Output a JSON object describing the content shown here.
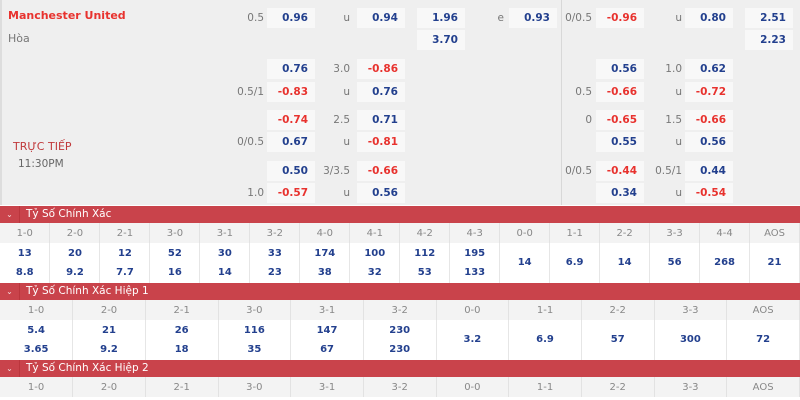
{
  "match": {
    "home": "Manchester United",
    "draw": "Hòa",
    "status": "TRỰC TIẾP",
    "time": "11:30PM"
  },
  "colors": {
    "accent": "#c9434b",
    "positive": "#23408e",
    "negative": "#e8322e"
  },
  "odds_rows": [
    {
      "hl": "0.5",
      "h": "0.96",
      "ol": "u",
      "o": "0.94",
      "x": "1.96",
      "el": "e",
      "e": "0.93",
      "hl2": "0/0.5",
      "h2": "-0.96",
      "ol2": "u",
      "o2": "0.80",
      "x2": "2.51"
    },
    {
      "x": "3.70",
      "x2": "2.23"
    },
    {
      "h": "0.76",
      "ol": "3.0",
      "o": "-0.86",
      "h2": "0.56",
      "ol2": "1.0",
      "o2": "0.62"
    },
    {
      "hl": "0.5/1",
      "h": "-0.83",
      "ol": "u",
      "o": "0.76",
      "hl2": "0.5",
      "h2": "-0.66",
      "ol2": "u",
      "o2": "-0.72"
    },
    {
      "h": "-0.74",
      "ol": "2.5",
      "o": "0.71",
      "hl2": "0",
      "h2": "-0.65",
      "ol2": "1.5",
      "o2": "-0.66"
    },
    {
      "hl": "0/0.5",
      "h": "0.67",
      "ol": "u",
      "o": "-0.81",
      "h2": "0.55",
      "ol2": "u",
      "o2": "0.56"
    },
    {
      "h": "0.50",
      "ol": "3/3.5",
      "o": "-0.66",
      "hl2": "0/0.5",
      "h2": "-0.44",
      "ol2": "0.5/1",
      "o2": "0.44"
    },
    {
      "hl": "1.0",
      "h": "-0.57",
      "ol": "u",
      "o": "0.56",
      "h2": "0.34",
      "ol2": "u",
      "o2": "-0.54"
    }
  ],
  "sections": [
    {
      "title": "Tỷ Số Chính Xác",
      "headers": [
        "1-0",
        "2-0",
        "2-1",
        "3-0",
        "3-1",
        "3-2",
        "4-0",
        "4-1",
        "4-2",
        "4-3",
        "0-0",
        "1-1",
        "2-2",
        "3-3",
        "4-4",
        "AOS"
      ],
      "values": [
        [
          "13",
          "8.8"
        ],
        [
          "20",
          "9.2"
        ],
        [
          "12",
          "7.7"
        ],
        [
          "52",
          "16"
        ],
        [
          "30",
          "14"
        ],
        [
          "33",
          "23"
        ],
        [
          "174",
          "38"
        ],
        [
          "100",
          "32"
        ],
        [
          "112",
          "53"
        ],
        [
          "195",
          "133"
        ],
        [
          "14"
        ],
        [
          "6.9"
        ],
        [
          "14"
        ],
        [
          "56"
        ],
        [
          "268"
        ],
        [
          "21"
        ]
      ]
    },
    {
      "title": "Tỷ Số Chính Xác Hiệp 1",
      "headers": [
        "1-0",
        "2-0",
        "2-1",
        "3-0",
        "3-1",
        "3-2",
        "0-0",
        "1-1",
        "2-2",
        "3-3",
        "AOS"
      ],
      "values": [
        [
          "5.4",
          "3.65"
        ],
        [
          "21",
          "9.2"
        ],
        [
          "26",
          "18"
        ],
        [
          "116",
          "35"
        ],
        [
          "147",
          "67"
        ],
        [
          "230",
          "230"
        ],
        [
          "3.2"
        ],
        [
          "6.9"
        ],
        [
          "57"
        ],
        [
          "300"
        ],
        [
          "72"
        ]
      ]
    },
    {
      "title": "Tỷ Số Chính Xác Hiệp 2",
      "headers": [
        "1-0",
        "2-0",
        "2-1",
        "3-0",
        "3-1",
        "3-2",
        "0-0",
        "1-1",
        "2-2",
        "3-3",
        "AOS"
      ],
      "values": []
    }
  ]
}
